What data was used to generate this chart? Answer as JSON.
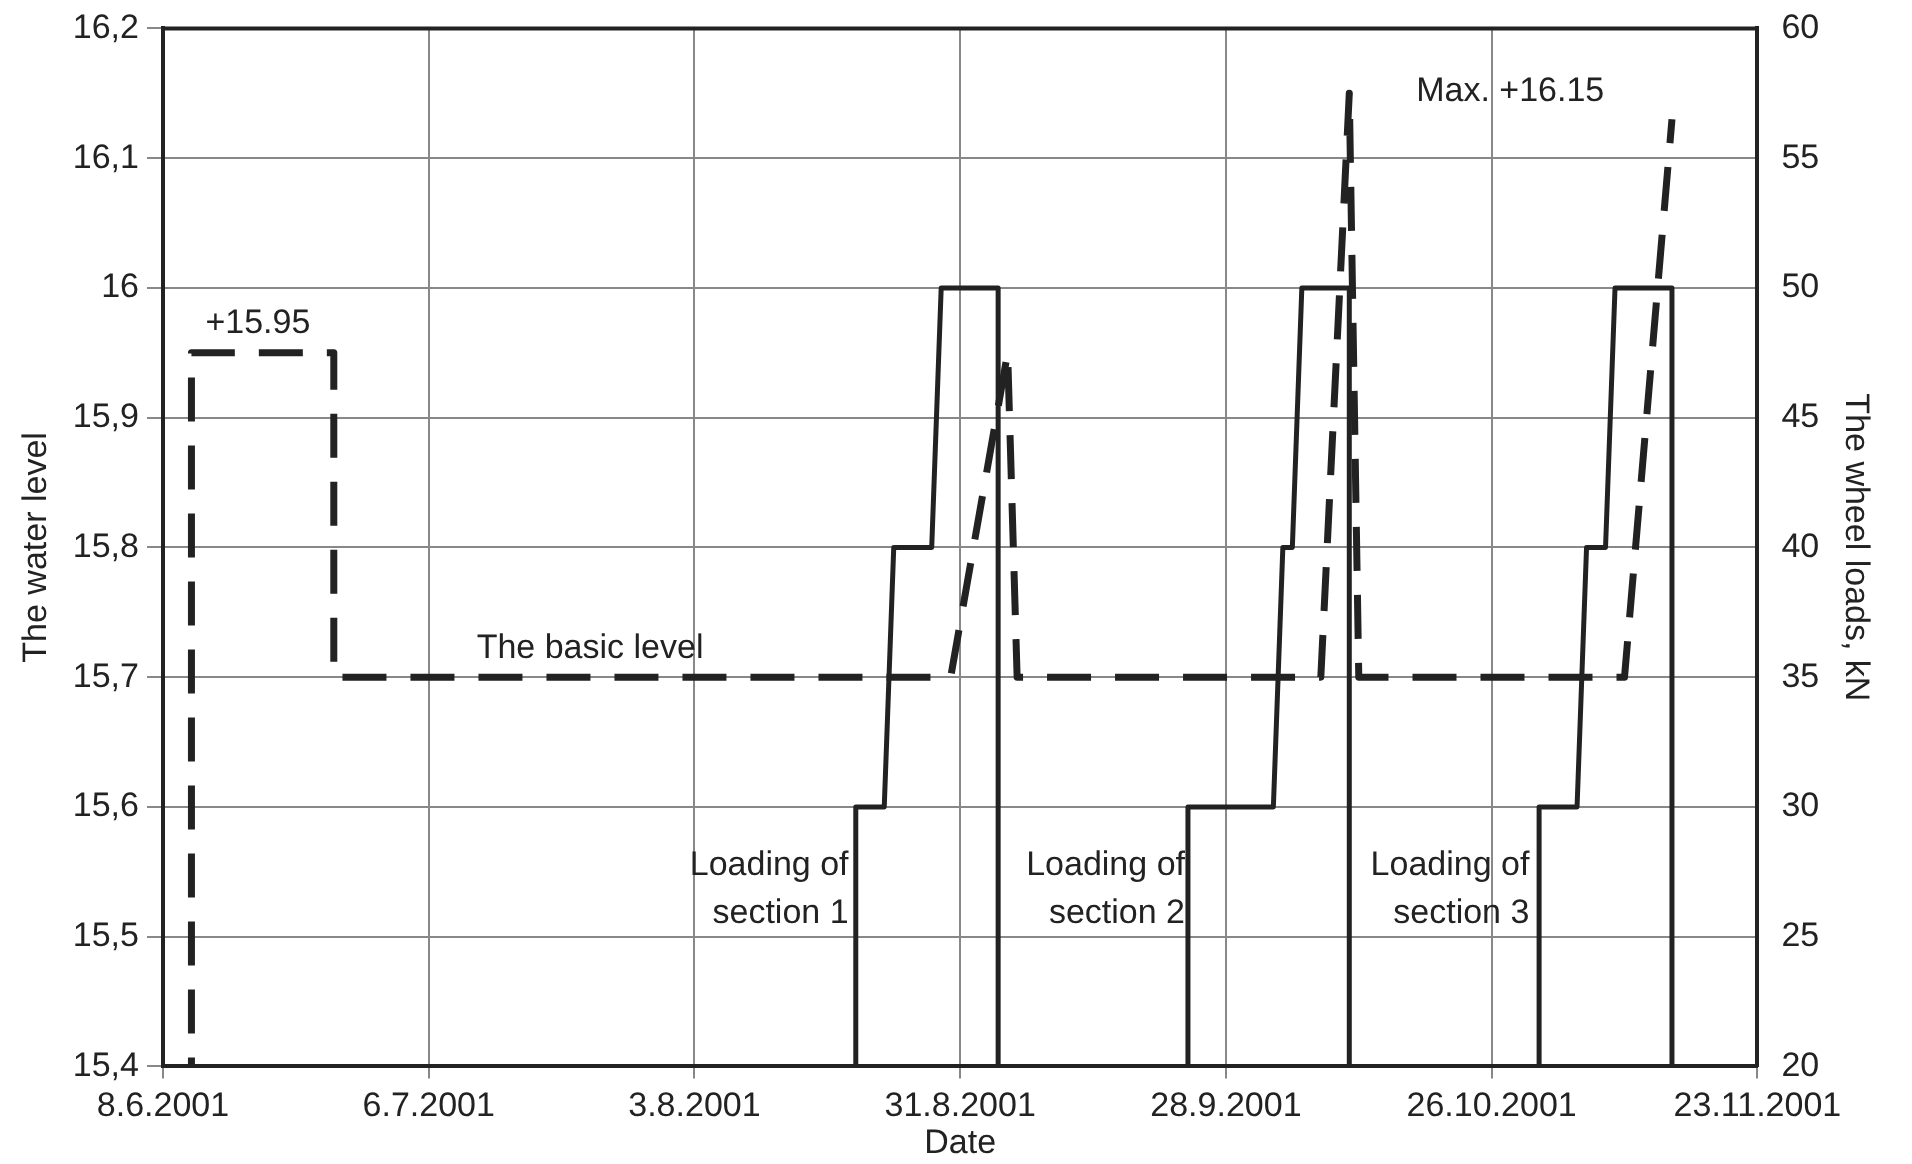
{
  "chart_data": {
    "type": "line",
    "xlabel": "Date",
    "ylabel": "The water level",
    "y2label": "The wheel loads, kN",
    "grid": true,
    "xlim": [
      "2001-06-08",
      "2001-11-23"
    ],
    "xticks": [
      {
        "value": "2001-06-08",
        "label": "8.6.2001"
      },
      {
        "value": "2001-07-06",
        "label": "6.7.2001"
      },
      {
        "value": "2001-08-03",
        "label": "3.8.2001"
      },
      {
        "value": "2001-08-31",
        "label": "31.8.2001"
      },
      {
        "value": "2001-09-28",
        "label": "28.9.2001"
      },
      {
        "value": "2001-10-26",
        "label": "26.10.2001"
      },
      {
        "value": "2001-11-23",
        "label": "23.11.2001"
      }
    ],
    "ylim": [
      15.4,
      16.2
    ],
    "yticks": [
      {
        "value": 15.4,
        "label": "15,4"
      },
      {
        "value": 15.5,
        "label": "15,5"
      },
      {
        "value": 15.6,
        "label": "15,6"
      },
      {
        "value": 15.7,
        "label": "15,7"
      },
      {
        "value": 15.8,
        "label": "15,8"
      },
      {
        "value": 15.9,
        "label": "15,9"
      },
      16,
      {
        "value": 16.1,
        "label": "16,1"
      },
      {
        "value": 16.2,
        "label": "16,2"
      }
    ],
    "y2lim": [
      20,
      60
    ],
    "y2ticks": [
      20,
      25,
      30,
      35,
      40,
      45,
      50,
      55,
      60
    ],
    "series": [
      {
        "color": "#222222",
        "line_style": "dashed",
        "x": [
          "2001-06-11",
          "2001-06-11",
          "2001-06-26",
          "2001-06-26",
          "2001-08-30",
          "2001-09-05",
          "2001-09-06",
          "2001-10-08",
          "2001-10-11",
          "2001-10-12",
          "2001-11-09",
          "2001-11-14"
        ],
        "values": [
          15.4,
          15.95,
          15.95,
          15.7,
          15.7,
          15.95,
          15.7,
          15.7,
          16.15,
          15.7,
          15.7,
          16.13
        ]
      },
      {
        "color": "#222222",
        "line_style": "solid",
        "axis": "y2",
        "x": [
          "2001-08-20",
          "2001-08-20",
          "2001-08-23",
          "2001-08-24",
          "2001-08-28",
          "2001-08-29",
          "2001-09-04",
          "2001-09-04",
          "2001-09-24",
          "2001-09-24",
          "2001-10-03",
          "2001-10-04",
          "2001-10-05",
          "2001-10-06",
          "2001-10-11",
          "2001-10-11",
          "2001-10-31",
          "2001-10-31",
          "2001-11-04",
          "2001-11-05",
          "2001-11-07",
          "2001-11-08",
          "2001-11-14",
          "2001-11-14"
        ],
        "values": [
          20,
          30,
          30,
          40,
          40,
          50,
          50,
          20,
          20,
          30,
          30,
          40,
          40,
          50,
          50,
          20,
          20,
          30,
          30,
          40,
          40,
          50,
          50,
          20
        ]
      }
    ],
    "annotations": [
      {
        "text": "+15.95",
        "x": "2001-06-18",
        "y": 15.95
      },
      "Max. +16.15",
      {
        "text": "The basic level",
        "x": "2001-07-23",
        "y": 15.7
      },
      "Loading of section 1",
      "Loading of section 2",
      "Loading of section 3"
    ]
  }
}
